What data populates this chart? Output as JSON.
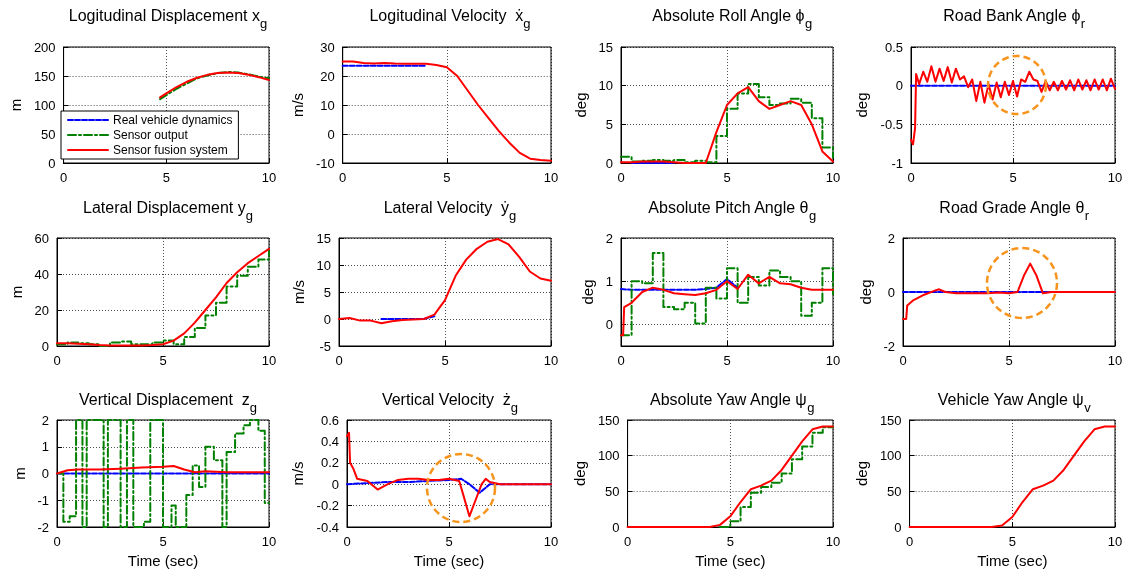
{
  "chart_data": [
    {
      "type": "line",
      "title": "Logitudinal Displacement x$_{g}$",
      "ylabel": "m",
      "xlim": [
        0,
        10
      ],
      "xticks": [
        0,
        5,
        10
      ],
      "ylim": [
        0,
        200
      ],
      "yticks": [
        0,
        50,
        100,
        150,
        200
      ],
      "grid": true,
      "legend": "bottom left",
      "x": [
        4.7,
        5,
        5.5,
        6,
        6.5,
        7,
        7.5,
        8,
        8.5,
        9,
        9.5,
        10
      ],
      "series": [
        {
          "name": "Real vehicle dynamics",
          "color": "#0000ff",
          "line_style": "dashed",
          "values": [
            null,
            null,
            null,
            null,
            null,
            null,
            null,
            null,
            null,
            null,
            null,
            null
          ]
        },
        {
          "name": "Sensor output",
          "color": "#008000",
          "line_style": "dashdot",
          "values": [
            110,
            117,
            128,
            137,
            146,
            151,
            155,
            157,
            156,
            153,
            149,
            146
          ]
        },
        {
          "name": "Sensor fusion system",
          "color": "#ff0000",
          "line_style": "solid",
          "values": [
            113,
            120,
            131,
            140,
            147,
            152,
            155,
            156,
            155,
            152,
            148,
            143
          ]
        }
      ]
    },
    {
      "type": "line",
      "title": "Logitudinal Velocity  ẋ$_{g}$",
      "ylabel": "m/s",
      "xlim": [
        0,
        10
      ],
      "xticks": [
        0,
        5,
        10
      ],
      "ylim": [
        -10,
        30
      ],
      "yticks": [
        -10,
        0,
        10,
        20,
        30
      ],
      "grid": true,
      "x": [
        0,
        0.5,
        1,
        1.5,
        2,
        2.5,
        3,
        3.5,
        4,
        4.5,
        5,
        5.5,
        6,
        6.5,
        7,
        7.5,
        8,
        8.5,
        9,
        9.5,
        10
      ],
      "series": [
        {
          "color": "#0000ff",
          "line_style": "dashed",
          "values": [
            23.5,
            23.5,
            23.5,
            23.5,
            23.5,
            23.5,
            23.5,
            23.5,
            23.5,
            null,
            null,
            null,
            null,
            null,
            null,
            null,
            null,
            null,
            null,
            null,
            null
          ]
        },
        {
          "color": "#ff0000",
          "line_style": "solid",
          "values": [
            25,
            25,
            24.5,
            24.3,
            24.5,
            24.3,
            24.2,
            24.2,
            24.2,
            23.8,
            23,
            20,
            15,
            10,
            5.5,
            1,
            -3,
            -6.5,
            -8.5,
            -9,
            -9.2
          ]
        }
      ]
    },
    {
      "type": "line",
      "title": "Absolute Roll Angle ϕ$_{g}$",
      "ylabel": "deg",
      "xlim": [
        0,
        10
      ],
      "xticks": [
        0,
        5,
        10
      ],
      "ylim": [
        0,
        15
      ],
      "yticks": [
        0,
        5,
        10,
        15
      ],
      "grid": true,
      "x": [
        0,
        0.5,
        1,
        1.5,
        2,
        2.5,
        3,
        3.5,
        4,
        4.5,
        5,
        5.5,
        6,
        6.5,
        7,
        7.5,
        8,
        8.5,
        9,
        9.5,
        10
      ],
      "series": [
        {
          "color": "#0000ff",
          "line_style": "dashed",
          "values": [
            null,
            0,
            0,
            0,
            0,
            0,
            null,
            null,
            null,
            null,
            null,
            null,
            null,
            null,
            null,
            null,
            null,
            null,
            null,
            null,
            null
          ]
        },
        {
          "color": "#008000",
          "line_style": "dashdot",
          "type": "step",
          "values": [
            0.8,
            0.2,
            0.3,
            0.4,
            0.3,
            0.4,
            0.1,
            0.3,
            0.1,
            3.5,
            7,
            9,
            10.2,
            8.5,
            7.5,
            7.7,
            8.3,
            7.8,
            5.8,
            2,
            0.7
          ]
        },
        {
          "color": "#ff0000",
          "line_style": "solid",
          "values": [
            0.1,
            0.1,
            0.2,
            0.2,
            0.2,
            0.1,
            0,
            0,
            0,
            4,
            7.5,
            9,
            9.8,
            8,
            7,
            7.5,
            8,
            7.5,
            5,
            1.5,
            0.2
          ]
        }
      ]
    },
    {
      "type": "line",
      "title": "Road Bank Angle ϕ$_{r}$",
      "ylabel": "deg",
      "xlim": [
        0,
        10
      ],
      "xticks": [
        0,
        5,
        10
      ],
      "ylim": [
        -1,
        0.5
      ],
      "yticks": [
        -1,
        -0.5,
        0,
        0.5
      ],
      "grid": true,
      "series": [
        {
          "color": "#0000ff",
          "line_style": "dashed",
          "x": [
            0,
            10
          ],
          "values": [
            0,
            0
          ]
        },
        {
          "color": "#ff0000",
          "line_style": "solid",
          "x": [
            0,
            0.1,
            0.2,
            0.25,
            0.4,
            0.6,
            0.8,
            1,
            1.2,
            1.4,
            1.6,
            1.8,
            2,
            2.2,
            2.4,
            2.6,
            2.8,
            3,
            3.2,
            3.4,
            3.6,
            3.8,
            4,
            4.2,
            4.4,
            4.6,
            4.8,
            5,
            5.2,
            5.4,
            5.6,
            5.8,
            6,
            6.2,
            6.4,
            6.6,
            6.8,
            7,
            7.2,
            7.4,
            7.6,
            7.8,
            8,
            8.2,
            8.4,
            8.6,
            8.8,
            9,
            9.2,
            9.4,
            9.6,
            9.8,
            10
          ],
          "values": [
            -0.7,
            -0.76,
            -0.55,
            0.15,
            0.02,
            0.18,
            0.05,
            0.25,
            0.05,
            0.22,
            0.06,
            0.24,
            0.04,
            0.22,
            0.08,
            0.12,
            -0.02,
            0.08,
            -0.2,
            0.05,
            -0.22,
            0.02,
            -0.18,
            0.04,
            -0.15,
            0.05,
            -0.12,
            0.06,
            -0.14,
            0.08,
            0.05,
            0.18,
            0.08,
            0.06,
            -0.08,
            0.06,
            -0.06,
            0.05,
            -0.06,
            0.06,
            -0.05,
            0.07,
            -0.06,
            0.08,
            -0.05,
            0.07,
            -0.06,
            0.08,
            -0.05,
            0.08,
            -0.06,
            0.09,
            -0.04
          ]
        }
      ]
    },
    {
      "type": "line",
      "title": "Lateral Displacement y$_{g}$",
      "ylabel": "m",
      "xlim": [
        0,
        10
      ],
      "xticks": [
        0,
        5,
        10
      ],
      "ylim": [
        0,
        60
      ],
      "yticks": [
        0,
        20,
        40,
        60
      ],
      "grid": true,
      "x": [
        0,
        0.5,
        1,
        1.5,
        2,
        2.5,
        3,
        3.5,
        4,
        4.5,
        5,
        5.5,
        6,
        6.5,
        7,
        7.5,
        8,
        8.5,
        9,
        9.5,
        10
      ],
      "series": [
        {
          "color": "#008000",
          "line_style": "dashdot",
          "type": "step",
          "values": [
            1,
            2,
            1.5,
            1,
            0,
            2,
            2.5,
            1,
            1,
            2,
            3,
            1,
            5,
            10,
            17,
            24,
            33,
            39,
            44,
            48,
            53
          ]
        },
        {
          "color": "#ff0000",
          "line_style": "solid",
          "values": [
            1.5,
            1.5,
            1.2,
            1,
            0.5,
            0.3,
            0.3,
            0.3,
            0.3,
            0.5,
            1,
            3,
            7,
            13,
            20,
            27,
            35,
            41,
            46,
            50,
            54
          ]
        }
      ]
    },
    {
      "type": "line",
      "title": "Lateral Velocity  ẏ$_{g}$",
      "ylabel": "m/s",
      "xlim": [
        0,
        10
      ],
      "xticks": [
        0,
        5,
        10
      ],
      "ylim": [
        -5,
        15
      ],
      "yticks": [
        -5,
        0,
        5,
        10,
        15
      ],
      "grid": true,
      "x": [
        0,
        0.5,
        1,
        1.5,
        2,
        2.5,
        3,
        3.5,
        4,
        4.5,
        5,
        5.5,
        6,
        6.5,
        7,
        7.5,
        8,
        8.5,
        9,
        9.5,
        10
      ],
      "series": [
        {
          "color": "#0000ff",
          "line_style": "dashed",
          "values": [
            null,
            null,
            null,
            null,
            0,
            0,
            0,
            0,
            0,
            0.5,
            null,
            null,
            null,
            null,
            null,
            null,
            null,
            null,
            null,
            null,
            null
          ]
        },
        {
          "color": "#ff0000",
          "line_style": "solid",
          "values": [
            0,
            0.2,
            -0.3,
            -0.3,
            -0.8,
            -0.4,
            -0.2,
            -0.1,
            0,
            0.8,
            3.5,
            8,
            11,
            13,
            14.3,
            14.8,
            13.8,
            11.5,
            8.8,
            7.5,
            7.1
          ]
        }
      ]
    },
    {
      "type": "line",
      "title": "Absolute Pitch Angle θ$_{g}$",
      "ylabel": "deg",
      "xlim": [
        0,
        10
      ],
      "xticks": [
        0,
        5,
        10
      ],
      "ylim": [
        -0.5,
        2
      ],
      "yticks": [
        0,
        1,
        2
      ],
      "grid": true,
      "series": [
        {
          "color": "#0000ff",
          "line_style": "dashed",
          "x": [
            0,
            0.5,
            1,
            1.5,
            2,
            2.5,
            3,
            3.5,
            4,
            4.5,
            5,
            5.5
          ],
          "values": [
            0.82,
            0.8,
            0.8,
            0.8,
            0.8,
            0.8,
            0.8,
            0.8,
            0.82,
            0.85,
            1.05,
            0.85
          ]
        },
        {
          "color": "#008000",
          "line_style": "dashdot",
          "type": "step",
          "x": [
            0,
            0.5,
            1,
            1.5,
            2,
            2.5,
            3,
            3.5,
            4,
            4.5,
            5,
            5.5,
            6,
            6.5,
            7,
            7.5,
            8,
            8.5,
            9,
            9.5,
            10
          ],
          "values": [
            -0.25,
            1,
            0.95,
            1.65,
            0.4,
            0.35,
            0.5,
            0.02,
            0.85,
            0.6,
            1.3,
            0.5,
            1.1,
            0.9,
            1.25,
            1.1,
            1,
            0.2,
            0.5,
            1.3,
            0.7
          ]
        },
        {
          "color": "#ff0000",
          "line_style": "solid",
          "x": [
            0,
            0.1,
            0.15,
            0.5,
            1,
            1.5,
            2,
            2.5,
            3,
            3.5,
            4,
            4.5,
            5,
            5.5,
            6,
            6.5,
            7,
            7.5,
            8,
            8.5,
            9,
            9.5,
            10
          ],
          "values": [
            -0.25,
            -0.25,
            0.4,
            0.5,
            0.75,
            0.85,
            0.8,
            0.72,
            0.7,
            0.68,
            0.72,
            0.8,
            1,
            0.82,
            1.15,
            0.95,
            1.1,
            0.95,
            0.93,
            0.85,
            0.8,
            0.8,
            0.8
          ]
        }
      ]
    },
    {
      "type": "line",
      "title": "Road Grade Angle θ$_{r}$",
      "ylabel": "deg",
      "xlim": [
        0,
        10
      ],
      "xticks": [
        0,
        5,
        10
      ],
      "ylim": [
        -2,
        2
      ],
      "yticks": [
        -2,
        0,
        2
      ],
      "grid": true,
      "series": [
        {
          "color": "#0000ff",
          "line_style": "dashed",
          "x": [
            0,
            10
          ],
          "values": [
            0,
            0
          ]
        },
        {
          "color": "#ff0000",
          "line_style": "solid",
          "x": [
            0,
            0.15,
            0.2,
            0.5,
            1,
            1.5,
            1.7,
            2,
            2.5,
            3,
            3.5,
            4,
            4.5,
            5,
            5.4,
            5.7,
            6,
            6.3,
            6.6,
            7,
            8,
            9,
            10
          ],
          "values": [
            -1,
            -1,
            -0.5,
            -0.3,
            -0.1,
            0.05,
            0.1,
            0,
            -0.05,
            -0.05,
            -0.05,
            -0.05,
            -0.02,
            -0.05,
            0,
            0.6,
            1.05,
            0.6,
            -0.05,
            0,
            0,
            0,
            0
          ]
        }
      ]
    },
    {
      "type": "line",
      "title": "Vertical Displacement  z$_{g}$",
      "ylabel": "m",
      "xlabel": "Time (sec)",
      "xlim": [
        0,
        10
      ],
      "xticks": [
        0,
        5,
        10
      ],
      "ylim": [
        -2,
        2
      ],
      "yticks": [
        -2,
        -1,
        0,
        1,
        2
      ],
      "grid": true,
      "series": [
        {
          "color": "#0000ff",
          "line_style": "dashed",
          "x": [
            0,
            10
          ],
          "values": [
            0,
            0
          ]
        },
        {
          "color": "#008000",
          "line_style": "dashdot",
          "type": "step",
          "x": [
            0,
            0.3,
            0.6,
            0.9,
            1.2,
            1.4,
            2.2,
            2.4,
            3,
            3.3,
            3.6,
            4.1,
            4.4,
            5,
            5.4,
            5.6,
            6.1,
            6.4,
            6.7,
            7,
            7.4,
            7.8,
            8,
            8.4,
            8.8,
            9.1,
            9.5,
            9.8,
            10
          ],
          "values": [
            0,
            -1.8,
            -1.6,
            2,
            -2,
            2,
            -2,
            2,
            -2,
            2,
            -2,
            -1.8,
            2,
            -2,
            -1.2,
            -2,
            -0.8,
            0.3,
            -0.5,
            1,
            0.5,
            -2,
            0.8,
            1.5,
            1.8,
            2,
            1.6,
            -1.1,
            -1.1
          ]
        },
        {
          "color": "#ff0000",
          "line_style": "solid",
          "x": [
            0,
            0.5,
            1,
            2,
            3,
            4,
            5,
            5.5,
            6,
            6.5,
            7,
            8,
            9,
            10
          ],
          "values": [
            0,
            0.12,
            0.15,
            0.15,
            0.18,
            0.22,
            0.25,
            0.28,
            0.15,
            0.05,
            0.08,
            0.05,
            0.05,
            0.05
          ]
        }
      ]
    },
    {
      "type": "line",
      "title": "Vertical Velocity  ż$_{g}$",
      "ylabel": "m/s",
      "xlabel": "Time (sec)",
      "xlim": [
        0,
        10
      ],
      "xticks": [
        0,
        5,
        10
      ],
      "ylim": [
        -0.4,
        0.6
      ],
      "yticks": [
        -0.4,
        -0.2,
        0,
        0.2,
        0.4,
        0.6
      ],
      "grid": true,
      "series": [
        {
          "color": "#0000ff",
          "line_style": "dashed",
          "x": [
            0,
            1,
            2,
            3,
            4,
            5,
            5.6,
            6,
            6.5,
            7,
            8,
            10
          ],
          "values": [
            0,
            0.01,
            0.02,
            0.02,
            0.03,
            0.04,
            0.05,
            0,
            -0.08,
            0,
            0,
            0
          ]
        },
        {
          "color": "#ff0000",
          "line_style": "solid",
          "x": [
            0,
            0.1,
            0.15,
            0.3,
            0.5,
            1,
            1.5,
            2,
            2.5,
            3,
            3.5,
            4,
            4.5,
            5,
            5.5,
            5.7,
            6,
            6.3,
            6.6,
            6.8,
            7,
            7.5,
            8,
            9,
            10
          ],
          "values": [
            0.45,
            0.48,
            0.2,
            0.15,
            0.05,
            0.03,
            -0.05,
            0,
            0.04,
            0.05,
            0.05,
            0.04,
            0.04,
            0.05,
            0.03,
            -0.1,
            -0.3,
            -0.15,
            0,
            0.05,
            0.02,
            0,
            0,
            0,
            0
          ]
        }
      ]
    },
    {
      "type": "line",
      "title": "Absolute Yaw Angle ψ$_{g}$",
      "ylabel": "deg",
      "xlabel": "Time (sec)",
      "xlim": [
        0,
        10
      ],
      "xticks": [
        0,
        5,
        10
      ],
      "ylim": [
        0,
        150
      ],
      "yticks": [
        0,
        50,
        100,
        150
      ],
      "grid": true,
      "x": [
        0,
        0.5,
        1,
        1.5,
        2,
        2.5,
        3,
        3.5,
        4,
        4.5,
        5,
        5.5,
        6,
        6.5,
        7,
        7.5,
        8,
        8.5,
        9,
        9.5,
        10
      ],
      "series": [
        {
          "color": "#008000",
          "line_style": "dashdot",
          "type": "step",
          "values": [
            null,
            null,
            null,
            null,
            null,
            null,
            null,
            null,
            null,
            0,
            8,
            28,
            48,
            56,
            62,
            75,
            95,
            113,
            132,
            140,
            141
          ]
        },
        {
          "color": "#ff0000",
          "line_style": "solid",
          "values": [
            0,
            0,
            0,
            0,
            0,
            0,
            0,
            0,
            0,
            3,
            15,
            35,
            53,
            58,
            65,
            80,
            100,
            120,
            137,
            141,
            141
          ]
        }
      ]
    },
    {
      "type": "line",
      "title": "Vehicle Yaw Angle ψ$_{v}$",
      "ylabel": "deg",
      "xlabel": "Time (sec)",
      "xlim": [
        0,
        10
      ],
      "xticks": [
        0,
        5,
        10
      ],
      "ylim": [
        0,
        150
      ],
      "yticks": [
        0,
        50,
        100,
        150
      ],
      "grid": true,
      "x": [
        0,
        0.5,
        1,
        1.5,
        2,
        2.5,
        3,
        3.5,
        4,
        4.5,
        5,
        5.5,
        6,
        6.5,
        7,
        7.5,
        8,
        8.5,
        9,
        9.5,
        10
      ],
      "series": [
        {
          "color": "#ff0000",
          "line_style": "solid",
          "values": [
            0,
            0,
            0,
            0,
            0,
            0,
            0,
            0,
            0,
            2,
            14,
            35,
            53,
            58,
            65,
            80,
            100,
            120,
            137,
            141,
            141
          ]
        }
      ]
    }
  ]
}
